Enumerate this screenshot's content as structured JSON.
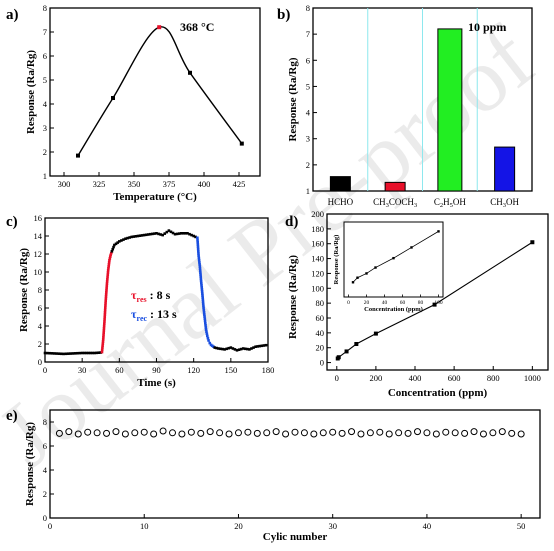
{
  "watermark": "Journal Pre-proof",
  "colors": {
    "axis": "#000000",
    "bar_hcho": "#000000",
    "bar_acetone": "#e8102a",
    "bar_ethanol": "#22ee22",
    "bar_methanol": "#1414e6",
    "separator": "#8ee8ee",
    "peak_point": "#e8102a",
    "res_curve": "#e8102a",
    "rec_curve": "#1a4fe0"
  },
  "chart_data": [
    {
      "panel": "a)",
      "type": "line",
      "annotation": "368 °C",
      "xlabel": "Temperature (°C)",
      "ylabel": "Response (Ra/Rg)",
      "xlim": [
        290,
        440
      ],
      "ylim": [
        1,
        8
      ],
      "xticks": [
        300,
        325,
        350,
        375,
        400,
        425
      ],
      "yticks": [
        1,
        2,
        3,
        4,
        5,
        6,
        7,
        8
      ],
      "x": [
        310,
        335,
        368,
        390,
        427
      ],
      "y": [
        1.85,
        4.25,
        7.2,
        5.3,
        2.35
      ],
      "highlight_index": 2
    },
    {
      "panel": "b)",
      "type": "bar",
      "annotation": "10 ppm",
      "ylabel": "Response (Ra/Rg)",
      "ylim": [
        1,
        8
      ],
      "yticks": [
        1,
        2,
        3,
        4,
        5,
        6,
        7,
        8
      ],
      "categories": [
        "HCHO",
        "CH3COCH3",
        "C2H5OH",
        "CH3OH"
      ],
      "category_labels": [
        {
          "main": "HCHO"
        },
        {
          "main": "CH",
          "sub1": "3",
          "mid": "COCH",
          "sub2": "3"
        },
        {
          "main": "C",
          "sub1": "2",
          "mid": "H",
          "sub2": "5",
          "tail": "OH"
        },
        {
          "main": "CH",
          "sub1": "3",
          "tail": "OH"
        }
      ],
      "values": [
        1.55,
        1.33,
        7.2,
        2.68
      ]
    },
    {
      "panel": "c)",
      "type": "line",
      "xlabel": "Time (s)",
      "ylabel": "Response (Ra/Rg)",
      "xlim": [
        0,
        180
      ],
      "ylim": [
        0,
        16
      ],
      "xticks": [
        0,
        30,
        60,
        90,
        120,
        150,
        180
      ],
      "yticks": [
        0,
        2,
        4,
        6,
        8,
        10,
        12,
        14,
        16
      ],
      "tau_res_label": "τ",
      "tau_res_sub": "res",
      "tau_res_value": ": 8 s",
      "tau_rec_label": "τ",
      "tau_rec_sub": "rec",
      "tau_rec_value": ": 13 s",
      "segments": [
        {
          "name": "baseline",
          "x": [
            0,
            15,
            30,
            40,
            45,
            46
          ],
          "y": [
            1.0,
            0.9,
            1.0,
            1.0,
            1.05,
            1.1
          ]
        },
        {
          "name": "response",
          "x": [
            46,
            47,
            48,
            49,
            50,
            51,
            52,
            53,
            54
          ],
          "y": [
            1.1,
            2.5,
            4.5,
            6.8,
            8.7,
            10.2,
            11.3,
            11.9,
            12.3
          ]
        },
        {
          "name": "saturation",
          "x": [
            54,
            56,
            60,
            65,
            70,
            80,
            90,
            95,
            100,
            105,
            110,
            115,
            120,
            123
          ],
          "y": [
            12.3,
            13.0,
            13.4,
            13.7,
            13.9,
            14.1,
            14.3,
            14.1,
            14.6,
            14.2,
            14.3,
            14.3,
            14.0,
            13.8
          ]
        },
        {
          "name": "recovery",
          "x": [
            123,
            124,
            125,
            126,
            127,
            128,
            129,
            130,
            131,
            132,
            133,
            134,
            135,
            136,
            137
          ],
          "y": [
            13.8,
            11.8,
            10.6,
            9.0,
            7.6,
            6.0,
            4.8,
            3.6,
            2.9,
            2.4,
            2.1,
            1.9,
            1.8,
            1.7,
            1.6
          ]
        },
        {
          "name": "tail",
          "x": [
            137,
            140,
            145,
            150,
            155,
            160,
            165,
            170,
            175,
            180
          ],
          "y": [
            1.6,
            1.5,
            1.4,
            1.6,
            1.3,
            1.5,
            1.4,
            1.7,
            1.8,
            1.9
          ]
        }
      ]
    },
    {
      "panel": "d)",
      "type": "line",
      "xlabel": "Concentration (ppm)",
      "ylabel": "Response (Ra/Rg)",
      "xlim": [
        -50,
        1080
      ],
      "ylim": [
        -10,
        200
      ],
      "xticks": [
        0,
        200,
        400,
        600,
        800,
        1000
      ],
      "yticks": [
        0,
        20,
        40,
        60,
        80,
        100,
        120,
        140,
        160,
        180,
        200
      ],
      "x": [
        5,
        10,
        50,
        100,
        200,
        500,
        1000
      ],
      "y": [
        5.5,
        7.2,
        15,
        25,
        39,
        78,
        162
      ],
      "inset": {
        "xlabel": "Concentration (ppm)",
        "ylabel": "Response (Ra/Rg)",
        "xlim": [
          -5,
          105
        ],
        "ylim": [
          0,
          28
        ],
        "xticks": [
          0,
          20,
          40,
          60,
          80,
          100
        ],
        "yticks": [],
        "x": [
          5,
          10,
          20,
          30,
          50,
          70,
          100
        ],
        "y": [
          5.5,
          7.2,
          8.8,
          11,
          14.5,
          18.5,
          24.5
        ]
      }
    },
    {
      "panel": "e)",
      "type": "scatter",
      "xlabel": "Cylic number",
      "ylabel": "Response (Ra/Rg)",
      "xlim": [
        0,
        52
      ],
      "ylim": [
        0,
        9
      ],
      "xticks": [
        0,
        10,
        20,
        30,
        40,
        50
      ],
      "yticks": [
        0,
        2,
        4,
        6,
        8
      ],
      "x": [
        1,
        2,
        3,
        4,
        5,
        6,
        7,
        8,
        9,
        10,
        11,
        12,
        13,
        14,
        15,
        16,
        17,
        18,
        19,
        20,
        21,
        22,
        23,
        24,
        25,
        26,
        27,
        28,
        29,
        30,
        31,
        32,
        33,
        34,
        35,
        36,
        37,
        38,
        39,
        40,
        41,
        42,
        43,
        44,
        45,
        46,
        47,
        48,
        49,
        50
      ],
      "y": [
        7.05,
        7.2,
        7.0,
        7.15,
        7.1,
        7.05,
        7.2,
        7.0,
        7.1,
        7.15,
        7.0,
        7.25,
        7.1,
        7.0,
        7.15,
        7.05,
        7.2,
        7.1,
        7.0,
        7.1,
        7.15,
        7.05,
        7.1,
        7.2,
        7.0,
        7.15,
        7.1,
        7.0,
        7.1,
        7.15,
        7.05,
        7.2,
        7.0,
        7.1,
        7.15,
        7.0,
        7.1,
        7.05,
        7.2,
        7.1,
        7.0,
        7.15,
        7.1,
        7.05,
        7.2,
        7.0,
        7.1,
        7.2,
        7.05,
        7.0
      ]
    }
  ]
}
